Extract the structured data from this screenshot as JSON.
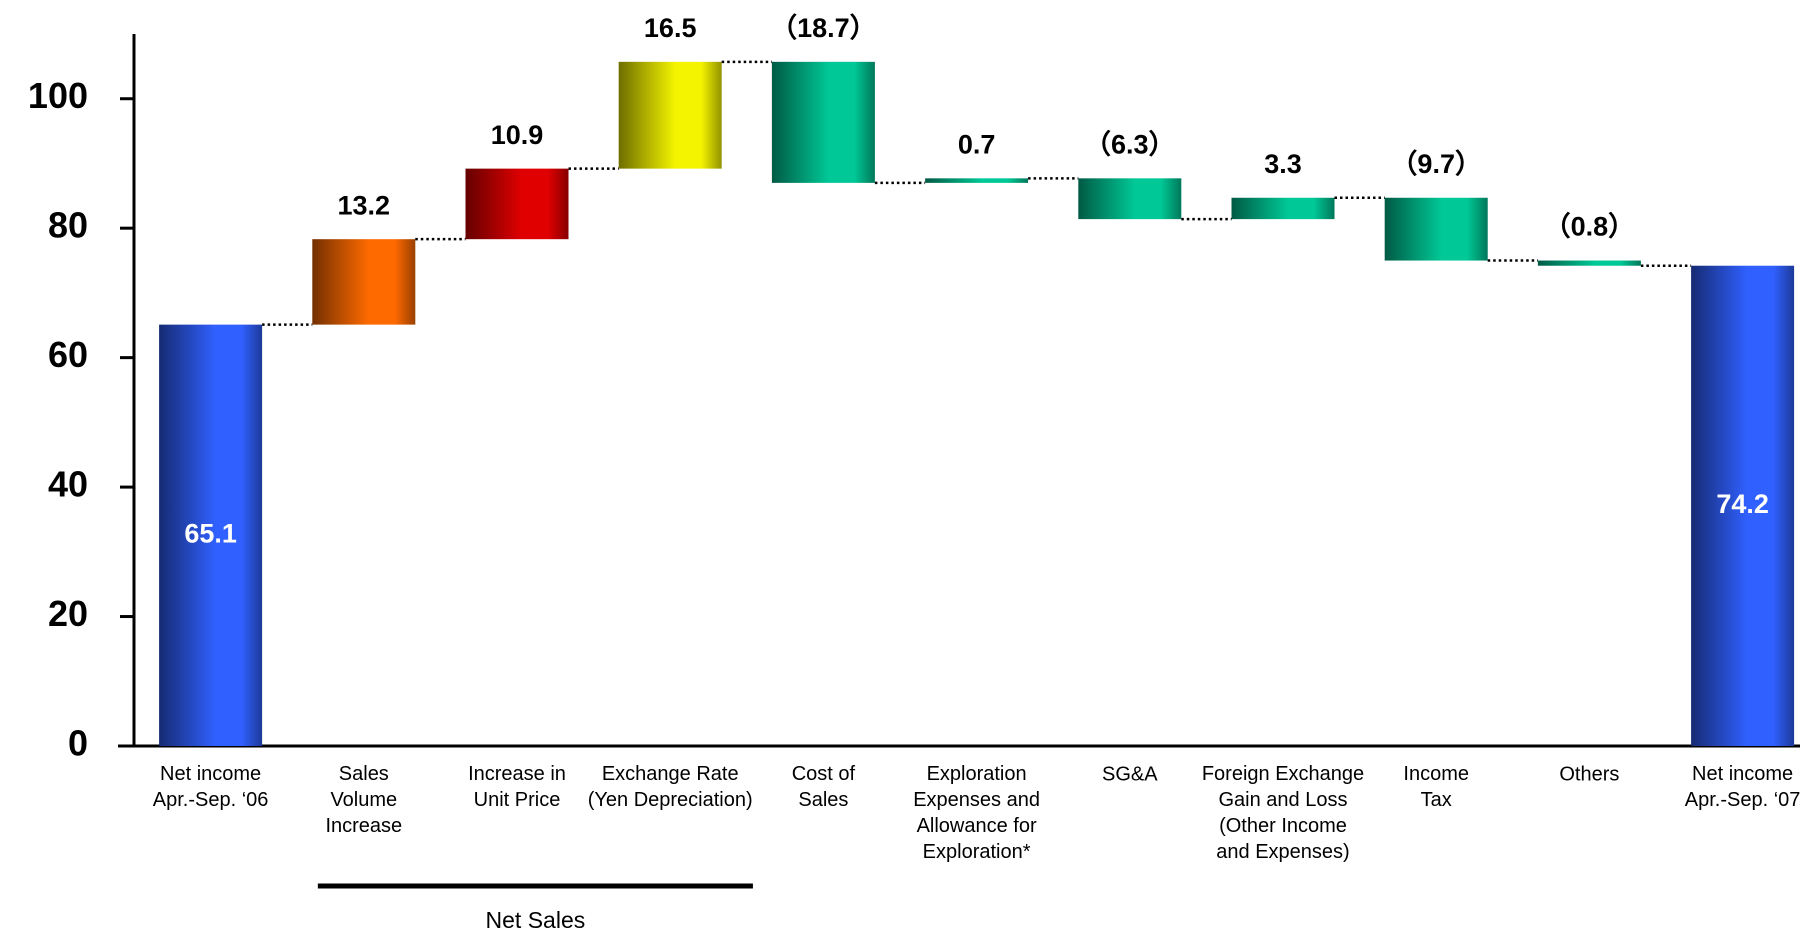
{
  "chart_data": {
    "type": "waterfall",
    "categories": [
      "Net income\nApr.-Sep. ‘06",
      "Sales\nVolume\nIncrease",
      "Increase in\nUnit Price",
      "Exchange Rate\n(Yen Depreciation)",
      "Cost of\nSales",
      "Exploration\nExpenses and\nAllowance for\nExploration*",
      "SG&A",
      "Foreign Exchange\nGain and Loss\n(Other Income\nand Expenses)",
      "Income\nTax",
      "Others",
      "Net income\nApr.-Sep. ‘07"
    ],
    "values": [
      65.1,
      13.2,
      10.9,
      16.5,
      -18.7,
      0.7,
      -6.3,
      3.3,
      -9.7,
      -0.8,
      74.2
    ],
    "value_labels": [
      "65.1",
      "13.2",
      "10.9",
      "16.5",
      "（18.7）",
      "0.7",
      "（6.3）",
      "3.3",
      "（9.7）",
      "（0.8）",
      "74.2"
    ],
    "measure": [
      "absolute",
      "relative",
      "relative",
      "relative",
      "relative",
      "relative",
      "relative",
      "relative",
      "relative",
      "relative",
      "total"
    ],
    "colors": [
      "#3060ff",
      "#ff6a00",
      "#e00000",
      "#f4f400",
      "#00c896",
      "#00c896",
      "#00c896",
      "#00c896",
      "#00c896",
      "#00c896",
      "#3060ff"
    ],
    "ylim": [
      0,
      110
    ],
    "yticks": [
      0,
      20,
      40,
      60,
      80,
      100
    ],
    "grid": false,
    "groups": [
      {
        "label": "Net Sales",
        "from": 1,
        "to": 3
      }
    ]
  }
}
